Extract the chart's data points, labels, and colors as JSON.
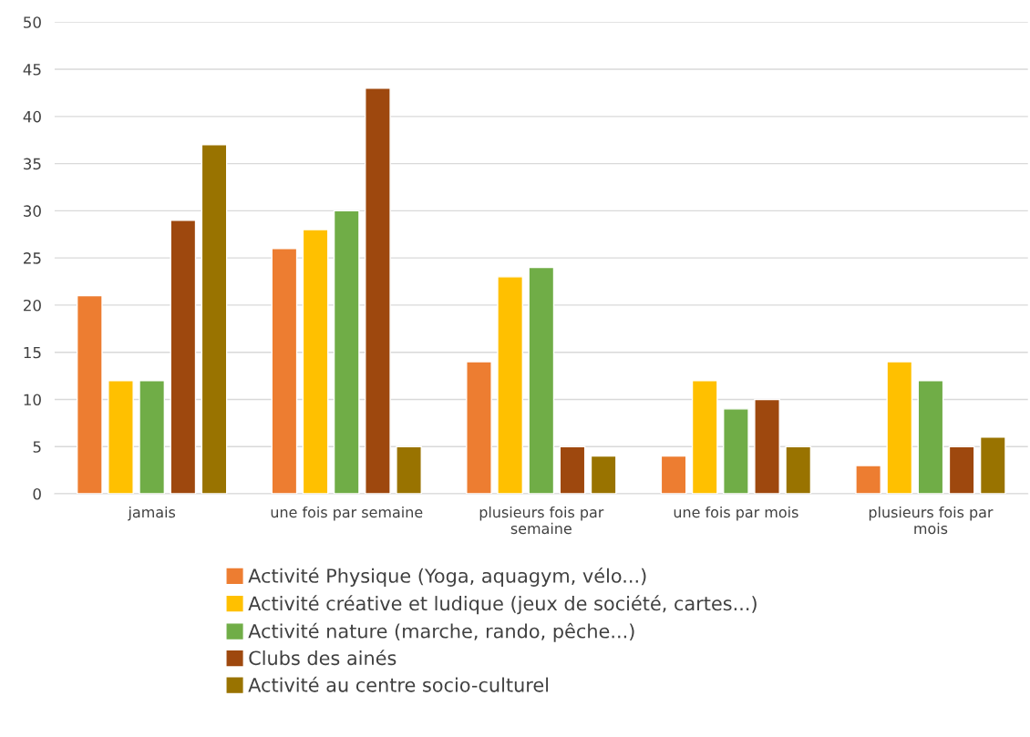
{
  "chart_data": {
    "type": "bar",
    "categories": [
      "jamais",
      "une fois par semaine",
      "plusieurs fois par\nsemaine",
      "une fois par mois",
      "plusieurs fois par\nmois"
    ],
    "series": [
      {
        "name": "Activité Physique (Yoga, aquagym, vélo...)",
        "color": "#ed7d31",
        "values": [
          21,
          26,
          14,
          4,
          3
        ]
      },
      {
        "name": "Activité créative et ludique (jeux de société, cartes...)",
        "color": "#ffc000",
        "values": [
          12,
          28,
          23,
          12,
          14
        ]
      },
      {
        "name": "Activité nature (marche, rando, pêche...)",
        "color": "#70ad47",
        "values": [
          12,
          30,
          24,
          9,
          12
        ]
      },
      {
        "name": "Clubs des ainés",
        "color": "#9e480e",
        "values": [
          29,
          43,
          5,
          10,
          5
        ]
      },
      {
        "name": "Activité au centre socio-culturel",
        "color": "#997300",
        "values": [
          37,
          5,
          4,
          5,
          6
        ]
      }
    ],
    "ylim": [
      0,
      50
    ],
    "yticks": [
      0,
      5,
      10,
      15,
      20,
      25,
      30,
      35,
      40,
      45,
      50
    ],
    "grid": "y",
    "legend": "bottom"
  }
}
